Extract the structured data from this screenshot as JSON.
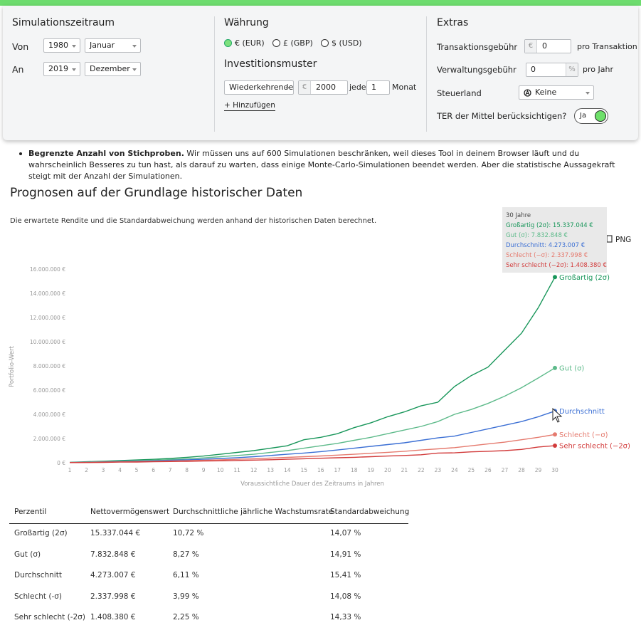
{
  "settings": {
    "period": {
      "title": "Simulationszeitraum",
      "from_label": "Von",
      "from_year": "1980",
      "from_month": "Januar",
      "to_label": "An",
      "to_year": "2019",
      "to_month": "Dezember"
    },
    "currency": {
      "title": "Währung",
      "options": [
        "€ (EUR)",
        "£ (GBP)",
        "$ (USD)"
      ],
      "selected": 0
    },
    "investment": {
      "title": "Investitionsmuster",
      "pattern": "Wiederkehrende",
      "currency": "€",
      "amount": "2000",
      "every": "jede",
      "interval": "1",
      "unit": "Monat",
      "add": "+ Hinzufügen"
    },
    "extras": {
      "title": "Extras",
      "transaction_fee_label": "Transaktionsgebühr",
      "transaction_fee_currency": "€",
      "transaction_fee": "0",
      "transaction_fee_unit": "pro Transaktion",
      "management_fee_label": "Verwaltungsgebühr",
      "management_fee": "0",
      "management_fee_percent": "%",
      "management_fee_unit": "pro Jahr",
      "tax_country_label": "Steuerland",
      "tax_country": "Keine",
      "ter_label": "TER der Mittel berücksichtigen?",
      "ter": "Ja"
    }
  },
  "note": {
    "bold": "Begrenzte Anzahl von Stichproben.",
    "text": "Wir müssen uns auf 600 Simulationen beschränken, weil dieses Tool in deinem Browser läuft und du wahrscheinlich Besseres zu tun hast, als darauf zu warten, dass einige Monte-Carlo-Simulationen beendet werden. Aber die statistische Aussagekraft steigt mit der Anzahl der Simulationen."
  },
  "chart": {
    "type": "line",
    "title": "Prognosen auf der Grundlage historischer Daten",
    "subtitle": "Die erwartete Rendite und die Standardabweichung werden anhand der historischen Daten berechnet.",
    "x_label": "Voraussichtliche Dauer des Zeitraums in Jahren",
    "y_label": "Portfolio-Wert",
    "export": "PNG",
    "x": [
      1,
      2,
      3,
      4,
      5,
      6,
      7,
      8,
      9,
      10,
      11,
      12,
      13,
      14,
      15,
      16,
      17,
      18,
      19,
      20,
      21,
      22,
      23,
      24,
      25,
      26,
      27,
      28,
      29,
      30
    ],
    "xlim": [
      1,
      30
    ],
    "xticks": [
      1,
      2,
      3,
      4,
      5,
      6,
      7,
      8,
      9,
      10,
      11,
      12,
      13,
      14,
      15,
      16,
      17,
      18,
      19,
      20,
      21,
      22,
      23,
      24,
      25,
      26,
      27,
      28,
      29,
      30
    ],
    "ylim": [
      0,
      16000000
    ],
    "yticks": [
      {
        "value": 0,
        "label": "0 €"
      },
      {
        "value": 2000000,
        "label": "2.000.000 €"
      },
      {
        "value": 4000000,
        "label": "4.000.000 €"
      },
      {
        "value": 6000000,
        "label": "6.000.000 €"
      },
      {
        "value": 8000000,
        "label": "8.000.000 €"
      },
      {
        "value": 10000000,
        "label": "10.000.000 €"
      },
      {
        "value": 12000000,
        "label": "12.000.000 €"
      },
      {
        "value": 14000000,
        "label": "14.000.000 €"
      },
      {
        "value": 16000000,
        "label": "16.000.000 €"
      }
    ],
    "series": [
      {
        "name": "Großartig (2σ)",
        "color": "#18965a",
        "values": [
          30000,
          80000,
          130000,
          180000,
          230000,
          280000,
          350000,
          450000,
          550000,
          700000,
          850000,
          1000000,
          1200000,
          1400000,
          1900000,
          2100000,
          2400000,
          2900000,
          3300000,
          3800000,
          4200000,
          4700000,
          5000000,
          6300000,
          7200000,
          7900000,
          9300000,
          10700000,
          12800000,
          15337044
        ]
      },
      {
        "name": "Gut (σ)",
        "color": "#5dba8a",
        "values": [
          20000,
          50000,
          90000,
          130000,
          170000,
          210000,
          260000,
          320000,
          400000,
          500000,
          600000,
          700000,
          850000,
          1000000,
          1200000,
          1400000,
          1600000,
          1850000,
          2100000,
          2400000,
          2700000,
          3000000,
          3400000,
          4000000,
          4400000,
          4900000,
          5500000,
          6200000,
          7000000,
          7832848
        ]
      },
      {
        "name": "Durchschnitt",
        "color": "#3b6fd4",
        "values": [
          20000,
          40000,
          70000,
          100000,
          130000,
          160000,
          200000,
          240000,
          290000,
          350000,
          420000,
          500000,
          600000,
          700000,
          800000,
          920000,
          1050000,
          1200000,
          1350000,
          1500000,
          1650000,
          1850000,
          2050000,
          2200000,
          2500000,
          2800000,
          3100000,
          3400000,
          3800000,
          4273007
        ]
      },
      {
        "name": "Schlecht (−σ)",
        "color": "#e57a6e",
        "values": [
          10000,
          30000,
          50000,
          70000,
          90000,
          110000,
          140000,
          170000,
          200000,
          240000,
          280000,
          330000,
          380000,
          440000,
          500000,
          560000,
          630000,
          700000,
          780000,
          860000,
          950000,
          1050000,
          1150000,
          1250000,
          1400000,
          1550000,
          1700000,
          1900000,
          2100000,
          2337998
        ]
      },
      {
        "name": "Sehr schlecht (−2σ)",
        "color": "#d23b3b",
        "values": [
          10000,
          20000,
          30000,
          50000,
          60000,
          80000,
          100000,
          120000,
          140000,
          160000,
          190000,
          220000,
          250000,
          290000,
          330000,
          370000,
          410000,
          450000,
          500000,
          550000,
          600000,
          660000,
          800000,
          820000,
          900000,
          950000,
          1000000,
          1100000,
          1300000,
          1408380
        ]
      }
    ],
    "tooltip": {
      "title": "30 Jahre",
      "lines": [
        "Großartig (2σ): 15.337.044 €",
        "Gut (σ): 7.832.848 €",
        "Durchschnitt: 4.273.007 €",
        "Schlecht (−σ): 2.337.998 €",
        "Sehr schlecht (−2σ): 1.408.380 €"
      ]
    }
  },
  "table": {
    "headers": [
      "Perzentil",
      "Nettovermögenswert",
      "Durchschnittliche jährliche Wachstumsrate",
      "Standardabweichung"
    ],
    "rows": [
      [
        "Großartig (2σ)",
        "15.337.044 €",
        "10,72 %",
        "14,07 %"
      ],
      [
        "Gut (σ)",
        "7.832.848 €",
        "8,27 %",
        "14,91 %"
      ],
      [
        "Durchschnitt",
        "4.273.007 €",
        "6,11 %",
        "15,41 %"
      ],
      [
        "Schlecht (-σ)",
        "2.337.998 €",
        "3,99 %",
        "14,08 %"
      ],
      [
        "Sehr schlecht (-2σ)",
        "1.408.380 €",
        "2,25 %",
        "14,33 %"
      ]
    ]
  }
}
